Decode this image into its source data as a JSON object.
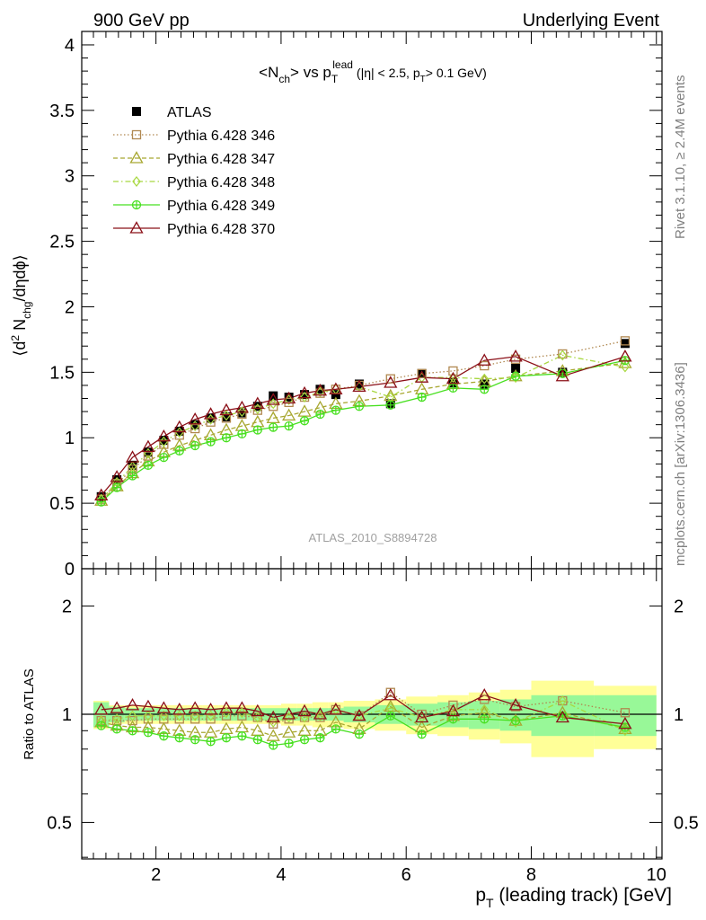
{
  "header": {
    "left": "900 GeV pp",
    "right": "Underlying Event"
  },
  "side_labels": {
    "rivet": "Rivet 3.1.10, ≥ 2.4M events",
    "mcplots": "mcplots.cern.ch [arXiv:1306.3436]"
  },
  "watermark": "ATLAS_2010_S8894728",
  "colors": {
    "atlas": "#000000",
    "p346": "#b08850",
    "p347": "#a8a832",
    "p348": "#a8d840",
    "p349": "#48e020",
    "p370": "#8b1018",
    "band_inner": "#98f898",
    "band_outer": "#ffff98"
  },
  "chart_data": [
    {
      "type": "scatter",
      "title": "<N_ch> vs p_T^lead (|η| < 2.5, p_T > 0.1 GeV)",
      "ylabel": "⟨d² N_chg/dηdϕ⟩",
      "xlabel": "p_T (leading track) [GeV]",
      "xlim": [
        0.8,
        10.0
      ],
      "ylim": [
        0,
        4.1
      ],
      "yticks": [
        "0",
        "0.5",
        "1",
        "1.5",
        "2",
        "2.5",
        "3",
        "3.5",
        "4"
      ],
      "xticks": [
        "2",
        "4",
        "6",
        "8",
        "10"
      ],
      "legend_position": "top-left",
      "x": [
        1.125,
        1.375,
        1.625,
        1.875,
        2.125,
        2.375,
        2.625,
        2.875,
        3.125,
        3.375,
        3.625,
        3.875,
        4.125,
        4.375,
        4.625,
        4.875,
        5.25,
        5.75,
        6.25,
        6.75,
        7.25,
        7.75,
        8.5,
        9.5
      ],
      "series": [
        {
          "name": "ATLAS",
          "marker": "square-filled",
          "values": [
            0.55,
            0.68,
            0.79,
            0.89,
            0.98,
            1.05,
            1.1,
            1.15,
            1.16,
            1.19,
            1.24,
            1.32,
            1.31,
            1.33,
            1.37,
            1.33,
            1.41,
            1.26,
            1.49,
            1.42,
            1.41,
            1.53,
            1.5,
            1.72
          ]
        },
        {
          "name": "Pythia 6.428 346",
          "marker": "square-open",
          "values": [
            0.53,
            0.65,
            0.76,
            0.86,
            0.95,
            1.02,
            1.07,
            1.12,
            1.15,
            1.18,
            1.21,
            1.24,
            1.27,
            1.31,
            1.34,
            1.37,
            1.4,
            1.45,
            1.49,
            1.51,
            1.55,
            1.6,
            1.64,
            1.74
          ]
        },
        {
          "name": "Pythia 6.428 347",
          "marker": "triangle-open",
          "values": [
            0.52,
            0.63,
            0.73,
            0.82,
            0.89,
            0.94,
            0.98,
            1.02,
            1.06,
            1.09,
            1.12,
            1.15,
            1.17,
            1.2,
            1.23,
            1.26,
            1.28,
            1.32,
            1.37,
            1.41,
            1.43,
            1.47,
            1.51,
            1.57
          ]
        },
        {
          "name": "Pythia 6.428 348",
          "marker": "diamond-open",
          "values": [
            0.53,
            0.66,
            0.78,
            0.88,
            0.97,
            1.04,
            1.09,
            1.14,
            1.17,
            1.2,
            1.22,
            1.26,
            1.29,
            1.31,
            1.35,
            1.37,
            1.39,
            1.31,
            1.46,
            1.46,
            1.45,
            1.46,
            1.63,
            1.54
          ]
        },
        {
          "name": "Pythia 6.428 349",
          "marker": "cross-circle",
          "values": [
            0.51,
            0.62,
            0.71,
            0.79,
            0.85,
            0.9,
            0.94,
            0.97,
            1.0,
            1.03,
            1.06,
            1.08,
            1.09,
            1.13,
            1.18,
            1.21,
            1.24,
            1.25,
            1.31,
            1.38,
            1.37,
            1.47,
            1.49,
            1.59
          ]
        },
        {
          "name": "Pythia 6.428 370",
          "marker": "triangle-open",
          "values": [
            0.56,
            0.7,
            0.85,
            0.93,
            1.01,
            1.08,
            1.14,
            1.18,
            1.21,
            1.23,
            1.26,
            1.29,
            1.3,
            1.34,
            1.36,
            1.37,
            1.39,
            1.42,
            1.46,
            1.45,
            1.59,
            1.62,
            1.47,
            1.62
          ]
        }
      ]
    },
    {
      "type": "scatter",
      "ylabel": "Ratio to ATLAS",
      "xlabel": "p_T (leading track) [GeV]",
      "xlim": [
        0.8,
        10.0
      ],
      "ylim": [
        0.35,
        2.3
      ],
      "yticks_left": [
        "0.5",
        "1",
        "2"
      ],
      "yticks_right": [
        "0.5",
        "1",
        "2"
      ],
      "xticks": [
        "2",
        "4",
        "6",
        "8",
        "10"
      ],
      "reference_line": 1,
      "bins": [
        [
          1.0,
          1.25
        ],
        [
          1.25,
          1.5
        ],
        [
          1.5,
          1.75
        ],
        [
          1.75,
          2.0
        ],
        [
          2.0,
          2.25
        ],
        [
          2.25,
          2.5
        ],
        [
          2.5,
          2.75
        ],
        [
          2.75,
          3.0
        ],
        [
          3.0,
          3.25
        ],
        [
          3.25,
          3.5
        ],
        [
          3.5,
          3.75
        ],
        [
          3.75,
          4.0
        ],
        [
          4.0,
          4.25
        ],
        [
          4.25,
          4.5
        ],
        [
          4.5,
          4.75
        ],
        [
          4.75,
          5.0
        ],
        [
          5.0,
          5.5
        ],
        [
          5.5,
          6.0
        ],
        [
          6.0,
          6.5
        ],
        [
          6.5,
          7.0
        ],
        [
          7.0,
          7.5
        ],
        [
          7.5,
          8.0
        ],
        [
          8.0,
          9.0
        ],
        [
          9.0,
          10.0
        ]
      ],
      "band_inner": [
        0.08,
        0.05,
        0.04,
        0.04,
        0.04,
        0.04,
        0.04,
        0.04,
        0.04,
        0.04,
        0.04,
        0.04,
        0.04,
        0.04,
        0.04,
        0.04,
        0.05,
        0.06,
        0.07,
        0.08,
        0.09,
        0.1,
        0.13,
        0.13
      ],
      "band_outer": [
        0.09,
        0.06,
        0.06,
        0.06,
        0.06,
        0.06,
        0.06,
        0.06,
        0.06,
        0.06,
        0.06,
        0.06,
        0.07,
        0.07,
        0.08,
        0.08,
        0.09,
        0.1,
        0.12,
        0.13,
        0.15,
        0.17,
        0.24,
        0.2
      ],
      "series": [
        {
          "name": "Pythia 6.428 346",
          "values": [
            0.96,
            0.96,
            0.96,
            0.97,
            0.97,
            0.97,
            0.97,
            0.97,
            0.99,
            0.99,
            0.98,
            0.94,
            0.97,
            0.98,
            0.98,
            1.03,
            0.99,
            1.15,
            1.0,
            1.06,
            1.1,
            1.05,
            1.09,
            1.01
          ]
        },
        {
          "name": "Pythia 6.428 347",
          "values": [
            0.95,
            0.93,
            0.92,
            0.92,
            0.91,
            0.9,
            0.89,
            0.89,
            0.91,
            0.92,
            0.9,
            0.87,
            0.89,
            0.9,
            0.9,
            0.95,
            0.91,
            1.05,
            0.92,
            0.99,
            1.01,
            0.96,
            1.01,
            0.91
          ]
        },
        {
          "name": "Pythia 6.428 348",
          "values": [
            0.96,
            0.97,
            0.99,
            0.99,
            0.99,
            0.99,
            0.99,
            0.99,
            1.01,
            1.01,
            0.98,
            0.95,
            0.98,
            0.98,
            0.99,
            1.03,
            0.99,
            1.04,
            0.98,
            1.03,
            1.03,
            0.95,
            1.09,
            0.9
          ]
        },
        {
          "name": "Pythia 6.428 349",
          "values": [
            0.93,
            0.91,
            0.9,
            0.89,
            0.87,
            0.86,
            0.85,
            0.84,
            0.86,
            0.87,
            0.85,
            0.82,
            0.83,
            0.85,
            0.86,
            0.91,
            0.88,
            0.99,
            0.88,
            0.97,
            0.97,
            0.96,
            0.99,
            0.92
          ]
        },
        {
          "name": "Pythia 6.428 370",
          "values": [
            1.03,
            1.04,
            1.06,
            1.05,
            1.04,
            1.03,
            1.04,
            1.03,
            1.04,
            1.04,
            1.02,
            0.98,
            1.0,
            1.02,
            1.0,
            1.03,
            0.99,
            1.13,
            0.98,
            1.02,
            1.13,
            1.06,
            0.98,
            0.94
          ]
        }
      ]
    }
  ]
}
